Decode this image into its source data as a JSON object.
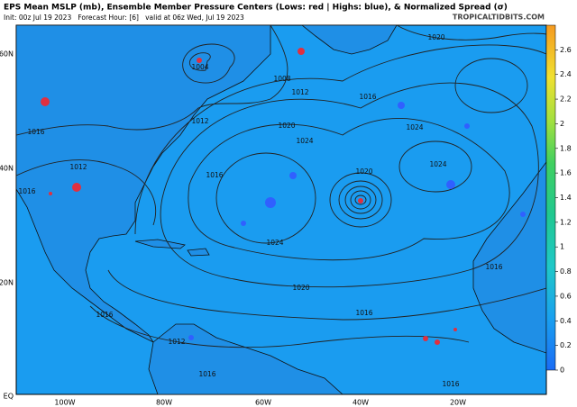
{
  "header": {
    "title": "EPS Mean MSLP (mb), Ensemble Member Pressure Centers (Lows: red | Highs: blue), & Normalized Spread (σ)",
    "subtitle": "Init: 00z Jul 19 2023   Forecast Hour: [6]   valid at 06z Wed, Jul 19 2023",
    "credit": "TROPICALTIDBITS.COM"
  },
  "map": {
    "lat_labels": [
      "60N",
      "40N",
      "20N",
      "EQ"
    ],
    "lon_labels": [
      "100W",
      "80W",
      "60W",
      "40W",
      "20W"
    ],
    "contour_labels": [
      1020,
      1004,
      1008,
      1012,
      1016,
      1020,
      1024,
      1012,
      1016,
      1024,
      1020,
      1024,
      1016,
      1012,
      1016,
      1024,
      1016,
      1020,
      1016,
      1016,
      1012,
      1016,
      1016
    ]
  },
  "colorbar": {
    "lim": [
      0,
      2.8
    ],
    "ticks": [
      0,
      0.2,
      0.4,
      0.6,
      0.8,
      1,
      1.2,
      1.4,
      1.6,
      1.8,
      2,
      2.2,
      2.4,
      2.6
    ]
  }
}
